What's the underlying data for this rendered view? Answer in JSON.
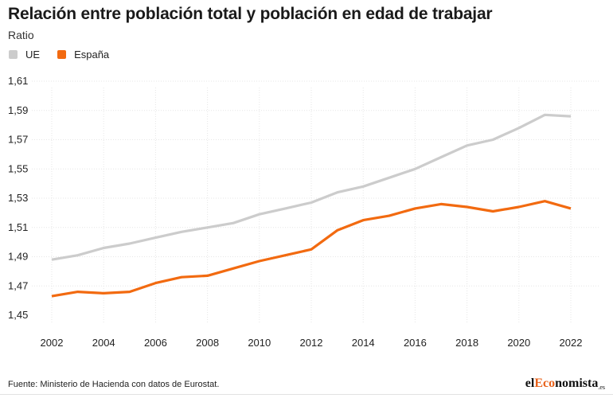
{
  "header": {
    "title": "Relación entre población total y población en edad de trabajar",
    "subtitle": "Ratio"
  },
  "legend": [
    {
      "label": "UE",
      "color": "#cccccc"
    },
    {
      "label": "España",
      "color": "#f26a10"
    }
  ],
  "footer": {
    "source": "Fuente: Ministerio de Hacienda con datos de Eurostat.",
    "brand_prefix": "el",
    "brand_accent": "Eco",
    "brand_rest": "nomista",
    "brand_suffix": ".es"
  },
  "chart_data": {
    "type": "line",
    "title": "Relación entre población total y población en edad de trabajar",
    "ylabel": "Ratio",
    "xlabel": "",
    "x": [
      2002,
      2003,
      2004,
      2005,
      2006,
      2007,
      2008,
      2009,
      2010,
      2011,
      2012,
      2013,
      2014,
      2015,
      2016,
      2017,
      2018,
      2019,
      2020,
      2021,
      2022
    ],
    "xticks": [
      "2002",
      "2004",
      "2006",
      "2008",
      "2010",
      "2012",
      "2014",
      "2016",
      "2018",
      "2020",
      "2022"
    ],
    "ylim": [
      1.45,
      1.61
    ],
    "yticks": [
      "1,45",
      "1,47",
      "1,49",
      "1,51",
      "1,53",
      "1,55",
      "1,57",
      "1,59",
      "1,61"
    ],
    "grid": true,
    "series": [
      {
        "name": "UE",
        "color": "#cccccc",
        "values": [
          1.488,
          1.491,
          1.496,
          1.499,
          1.503,
          1.507,
          1.51,
          1.513,
          1.519,
          1.523,
          1.527,
          1.534,
          1.538,
          1.544,
          1.55,
          1.558,
          1.566,
          1.57,
          1.578,
          1.587,
          1.586
        ]
      },
      {
        "name": "España",
        "color": "#f26a10",
        "values": [
          1.463,
          1.466,
          1.465,
          1.466,
          1.472,
          1.476,
          1.477,
          1.482,
          1.487,
          1.491,
          1.495,
          1.508,
          1.515,
          1.518,
          1.523,
          1.526,
          1.524,
          1.521,
          1.524,
          1.528,
          1.523
        ]
      }
    ]
  }
}
